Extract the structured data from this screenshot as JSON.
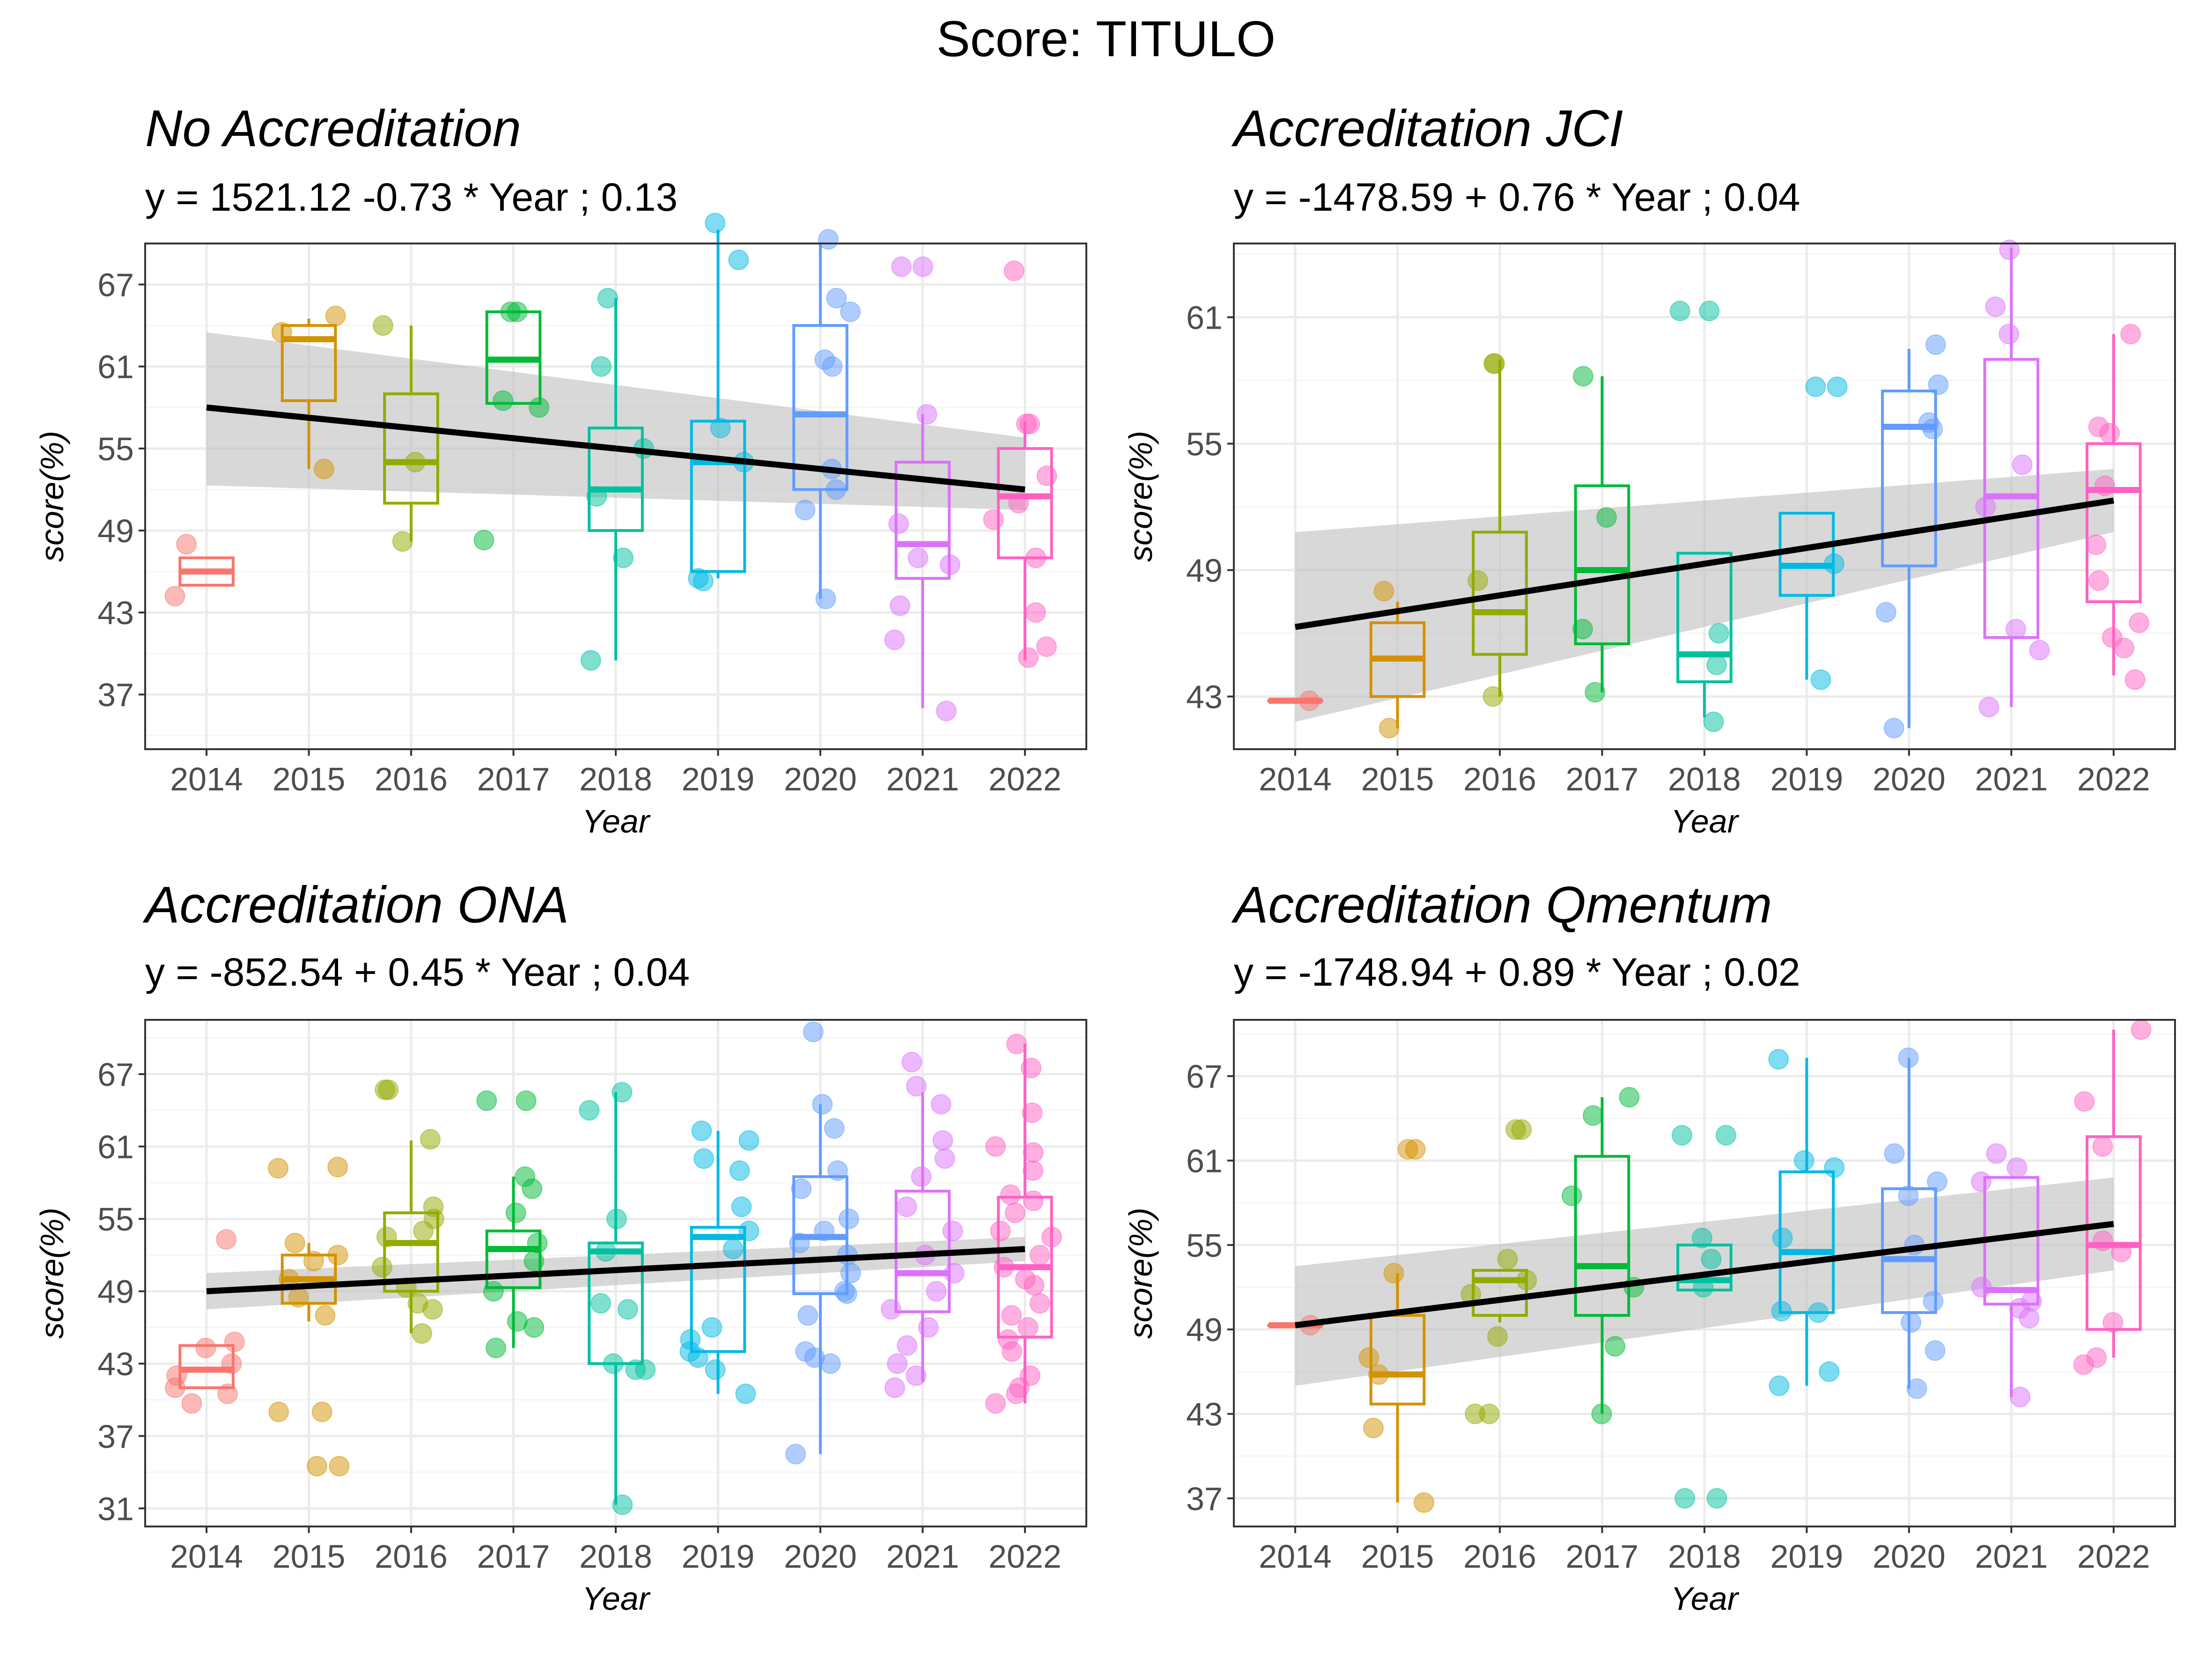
{
  "title": "Score: TITULO",
  "colors": {
    "2014": "#F8766D",
    "2015": "#D39200",
    "2016": "#93AA00",
    "2017": "#00BA38",
    "2018": "#00C19F",
    "2019": "#00B9E3",
    "2020": "#619CFF",
    "2021": "#DB72FB",
    "2022": "#FF61C3",
    "trend": "#000000",
    "ribbon": "#BEBEBE",
    "grid_major": "#EBEBEB",
    "grid_minor": "#F5F5F5",
    "frame": "#333333"
  },
  "chart_data": [
    {
      "type": "box",
      "title": "No Accreditation",
      "subtitle": "y = 1521.12 -0.73 * Year ; 0.13",
      "xlabel": "Year",
      "ylabel": "score(%)",
      "categories": [
        "2014",
        "2015",
        "2016",
        "2017",
        "2018",
        "2019",
        "2020",
        "2021",
        "2022"
      ],
      "ylim": [
        33,
        70
      ],
      "yticks": [
        37,
        43,
        49,
        55,
        61,
        67
      ],
      "boxes": [
        {
          "year": "2014",
          "min": 45,
          "q1": 45,
          "median": 46,
          "q3": 47,
          "max": 47
        },
        {
          "year": "2015",
          "min": 53.5,
          "q1": 58.5,
          "median": 63,
          "q3": 64,
          "max": 64.5
        },
        {
          "year": "2016",
          "min": 48.2,
          "q1": 51,
          "median": 54,
          "q3": 59,
          "max": 64
        },
        {
          "year": "2017",
          "min": 58.2,
          "q1": 58.3,
          "median": 61.5,
          "q3": 65,
          "max": 65
        },
        {
          "year": "2018",
          "min": 39.5,
          "q1": 49,
          "median": 52,
          "q3": 56.5,
          "max": 66
        },
        {
          "year": "2019",
          "min": 45.5,
          "q1": 46,
          "median": 54,
          "q3": 57,
          "max": 71
        },
        {
          "year": "2020",
          "min": 44,
          "q1": 52,
          "median": 57.5,
          "q3": 64,
          "max": 70
        },
        {
          "year": "2021",
          "min": 36,
          "q1": 45.5,
          "median": 48,
          "q3": 54,
          "max": 57.5
        },
        {
          "year": "2022",
          "min": 39.5,
          "q1": 47,
          "median": 51.5,
          "q3": 55,
          "max": 57
        }
      ],
      "points": [
        {
          "year": "2014",
          "values": [
            44.2,
            48
          ]
        },
        {
          "year": "2015",
          "values": [
            64.7,
            53.5,
            63.5
          ]
        },
        {
          "year": "2016",
          "values": [
            64,
            54,
            48.2
          ]
        },
        {
          "year": "2017",
          "values": [
            65,
            65,
            58.5,
            58,
            48.3
          ]
        },
        {
          "year": "2018",
          "values": [
            66,
            61,
            55,
            47,
            39.5,
            51.5
          ]
        },
        {
          "year": "2019",
          "values": [
            71.5,
            68.8,
            56.5,
            54,
            45.3,
            45.5
          ]
        },
        {
          "year": "2020",
          "values": [
            70.3,
            66,
            61.5,
            61,
            65,
            53.5,
            50.5,
            52,
            44
          ]
        },
        {
          "year": "2021",
          "values": [
            68.3,
            68.3,
            57.5,
            49.5,
            47,
            46.5,
            43.5,
            41,
            35.8
          ]
        },
        {
          "year": "2022",
          "values": [
            68,
            56.8,
            56.8,
            53,
            49.8,
            47,
            43,
            40.5,
            39.7,
            51
          ]
        }
      ],
      "trend": {
        "y2014": 58,
        "y2022": 52,
        "band_lo": [
          52.3,
          50.5
        ],
        "band_hi": [
          63.5,
          55.8
        ]
      }
    },
    {
      "type": "box",
      "title": "Accreditation JCI",
      "subtitle": "y = -1478.59 + 0.76 * Year ; 0.04",
      "xlabel": "Year",
      "ylabel": "score(%)",
      "categories": [
        "2014",
        "2015",
        "2016",
        "2017",
        "2018",
        "2019",
        "2020",
        "2021",
        "2022"
      ],
      "ylim": [
        40.5,
        64.5
      ],
      "yticks": [
        43,
        49,
        55,
        61
      ],
      "boxes": [
        {
          "year": "2014",
          "min": 42.8,
          "q1": 42.8,
          "median": 42.8,
          "q3": 42.8,
          "max": 42.8
        },
        {
          "year": "2015",
          "min": 41.5,
          "q1": 43,
          "median": 44.8,
          "q3": 46.5,
          "max": 47.5
        },
        {
          "year": "2016",
          "min": 43,
          "q1": 45,
          "median": 47,
          "q3": 50.8,
          "max": 59
        },
        {
          "year": "2017",
          "min": 43.2,
          "q1": 45.5,
          "median": 49,
          "q3": 53,
          "max": 58.2
        },
        {
          "year": "2018",
          "min": 42,
          "q1": 43.7,
          "median": 45,
          "q3": 49.8,
          "max": 49.8
        },
        {
          "year": "2019",
          "min": 43.8,
          "q1": 47.8,
          "median": 49.2,
          "q3": 51.7,
          "max": 51.7
        },
        {
          "year": "2020",
          "min": 41.5,
          "q1": 49.2,
          "median": 55.8,
          "q3": 57.5,
          "max": 59.5
        },
        {
          "year": "2021",
          "min": 42.5,
          "q1": 45.8,
          "median": 52.5,
          "q3": 59,
          "max": 64.3
        },
        {
          "year": "2022",
          "min": 44,
          "q1": 47.5,
          "median": 52.8,
          "q3": 55,
          "max": 60.2
        }
      ],
      "points": [
        {
          "year": "2014",
          "values": [
            42.8
          ]
        },
        {
          "year": "2015",
          "values": [
            48,
            41.5
          ]
        },
        {
          "year": "2016",
          "values": [
            58.8,
            58.8,
            43,
            48.5
          ]
        },
        {
          "year": "2017",
          "values": [
            58.2,
            51.5,
            46.2,
            43.2
          ]
        },
        {
          "year": "2018",
          "values": [
            61.3,
            61.3,
            46,
            44.5,
            41.8
          ]
        },
        {
          "year": "2019",
          "values": [
            57.7,
            57.7,
            43.8,
            49.3
          ]
        },
        {
          "year": "2020",
          "values": [
            59.7,
            57.8,
            56,
            47,
            41.5,
            55.7
          ]
        },
        {
          "year": "2021",
          "values": [
            64.2,
            61.5,
            60.2,
            54,
            46.2,
            45.2,
            42.5,
            52
          ]
        },
        {
          "year": "2022",
          "values": [
            60.2,
            55.8,
            55.5,
            53,
            50.2,
            48.5,
            46.5,
            45.8,
            45.3,
            43.8
          ]
        }
      ],
      "trend": {
        "y2014": 46.3,
        "y2022": 52.3,
        "band_lo": [
          41.8,
          50.8
        ],
        "band_hi": [
          50.8,
          53.8
        ]
      }
    },
    {
      "type": "box",
      "title": "Accreditation ONA",
      "subtitle": "y = -852.54 + 0.45 * Year ; 0.04",
      "xlabel": "Year",
      "ylabel": "score(%)",
      "categories": [
        "2014",
        "2015",
        "2016",
        "2017",
        "2018",
        "2019",
        "2020",
        "2021",
        "2022"
      ],
      "ylim": [
        29.5,
        71.5
      ],
      "yticks": [
        31,
        37,
        43,
        49,
        55,
        61,
        67
      ],
      "boxes": [
        {
          "year": "2014",
          "min": 41,
          "q1": 41,
          "median": 42.5,
          "q3": 44.5,
          "max": 44.5
        },
        {
          "year": "2015",
          "min": 46.5,
          "q1": 48,
          "median": 50,
          "q3": 52,
          "max": 53
        },
        {
          "year": "2016",
          "min": 45.5,
          "q1": 49,
          "median": 53,
          "q3": 55.5,
          "max": 61.5
        },
        {
          "year": "2017",
          "min": 44.3,
          "q1": 49.3,
          "median": 52.5,
          "q3": 54,
          "max": 58.5
        },
        {
          "year": "2018",
          "min": 31.3,
          "q1": 43,
          "median": 52.3,
          "q3": 53,
          "max": 65.5
        },
        {
          "year": "2019",
          "min": 40.5,
          "q1": 44,
          "median": 53.5,
          "q3": 54.3,
          "max": 62.3
        },
        {
          "year": "2020",
          "min": 35.5,
          "q1": 48.8,
          "median": 53.5,
          "q3": 58.5,
          "max": 64.5
        },
        {
          "year": "2021",
          "min": 41.5,
          "q1": 47.3,
          "median": 50.5,
          "q3": 57.3,
          "max": 65.5
        },
        {
          "year": "2022",
          "min": 39.7,
          "q1": 45.2,
          "median": 51,
          "q3": 56.8,
          "max": 69.5
        }
      ],
      "points": [
        {
          "year": "2014",
          "values": [
            53.3,
            44.8,
            44.3,
            43,
            42,
            41,
            40.5,
            39.7
          ]
        },
        {
          "year": "2015",
          "values": [
            59.2,
            59.3,
            53,
            52,
            51.5,
            50,
            48.5,
            47,
            39,
            39,
            34.5,
            34.5
          ]
        },
        {
          "year": "2016",
          "values": [
            65.7,
            65.7,
            61.6,
            56,
            55,
            54,
            53.5,
            51,
            49.3,
            48,
            47.5,
            45.5
          ]
        },
        {
          "year": "2017",
          "values": [
            64.8,
            64.8,
            58.5,
            57.5,
            55.5,
            53,
            51.5,
            49,
            46.5,
            46,
            44.3
          ]
        },
        {
          "year": "2018",
          "values": [
            65.5,
            64,
            55,
            52.3,
            48,
            47.5,
            43,
            42.5,
            42.5,
            31.3
          ]
        },
        {
          "year": "2019",
          "values": [
            62.3,
            61.5,
            60,
            59,
            56,
            54,
            52.5,
            46,
            45,
            44,
            43.5,
            42.5,
            40.5
          ]
        },
        {
          "year": "2020",
          "values": [
            70.5,
            64.5,
            62.5,
            59,
            57.5,
            55,
            54,
            53,
            52,
            50.5,
            49,
            48.8,
            47,
            44,
            43.5,
            43,
            35.5
          ]
        },
        {
          "year": "2021",
          "values": [
            68,
            66,
            64.5,
            61.5,
            60,
            58.5,
            56,
            54,
            52,
            50.5,
            49,
            47.5,
            46,
            44.5,
            43,
            42,
            41
          ]
        },
        {
          "year": "2022",
          "values": [
            69.5,
            67.5,
            63.8,
            61,
            60.5,
            59,
            57,
            56.5,
            55.5,
            54,
            53.5,
            52,
            51,
            50,
            49.5,
            48,
            47,
            46,
            45,
            44,
            42,
            41,
            40.5,
            39.7
          ]
        }
      ],
      "trend": {
        "y2014": 49,
        "y2022": 52.5,
        "band_lo": [
          47.5,
          51.5
        ],
        "band_hi": [
          50.5,
          53.5
        ]
      }
    },
    {
      "type": "box",
      "title": "Accreditation Qmentum",
      "subtitle": "y = -1748.94 + 0.89 * Year ; 0.02",
      "xlabel": "Year",
      "ylabel": "score(%)",
      "categories": [
        "2014",
        "2015",
        "2016",
        "2017",
        "2018",
        "2019",
        "2020",
        "2021",
        "2022"
      ],
      "ylim": [
        35,
        71
      ],
      "yticks": [
        37,
        43,
        49,
        55,
        61,
        67
      ],
      "boxes": [
        {
          "year": "2014",
          "min": 49.3,
          "q1": 49.3,
          "median": 49.3,
          "q3": 49.3,
          "max": 49.3
        },
        {
          "year": "2015",
          "min": 36.7,
          "q1": 43.7,
          "median": 45.8,
          "q3": 50,
          "max": 53
        },
        {
          "year": "2016",
          "min": 49.5,
          "q1": 50,
          "median": 52.5,
          "q3": 53.2,
          "max": 53.2
        },
        {
          "year": "2017",
          "min": 43,
          "q1": 50,
          "median": 53.5,
          "q3": 61.3,
          "max": 65.5
        },
        {
          "year": "2018",
          "min": 51.8,
          "q1": 51.8,
          "median": 52.5,
          "q3": 55,
          "max": 55
        },
        {
          "year": "2019",
          "min": 45,
          "q1": 50.2,
          "median": 54.5,
          "q3": 60.2,
          "max": 68.3
        },
        {
          "year": "2020",
          "min": 44.8,
          "q1": 50.2,
          "median": 54,
          "q3": 59,
          "max": 68.3
        },
        {
          "year": "2021",
          "min": 44.2,
          "q1": 50.8,
          "median": 51.8,
          "q3": 59.8,
          "max": 59.8
        },
        {
          "year": "2022",
          "min": 47,
          "q1": 49,
          "median": 55,
          "q3": 62.7,
          "max": 70.3
        }
      ],
      "points": [
        {
          "year": "2014",
          "values": [
            49.3
          ]
        },
        {
          "year": "2015",
          "values": [
            61.8,
            61.8,
            53,
            47,
            45.8,
            42,
            36.7
          ]
        },
        {
          "year": "2016",
          "values": [
            63.2,
            63.2,
            54,
            52.5,
            51.5,
            48.5,
            43,
            43
          ]
        },
        {
          "year": "2017",
          "values": [
            65.5,
            64.2,
            58.5,
            52,
            47.8,
            43
          ]
        },
        {
          "year": "2018",
          "values": [
            62.8,
            62.8,
            55.5,
            54,
            52,
            37,
            37
          ]
        },
        {
          "year": "2019",
          "values": [
            68.2,
            61,
            60.5,
            55.5,
            50.3,
            50.2,
            46,
            45
          ]
        },
        {
          "year": "2020",
          "values": [
            68.3,
            61.5,
            59.5,
            58.5,
            55,
            51,
            49.5,
            47.5,
            44.8
          ]
        },
        {
          "year": "2021",
          "values": [
            61.5,
            60.5,
            59.5,
            52,
            51,
            50.5,
            49.8,
            44.2
          ]
        },
        {
          "year": "2022",
          "values": [
            70.3,
            65.2,
            62,
            55.3,
            54.5,
            49.5,
            47,
            46.5
          ]
        }
      ],
      "trend": {
        "y2014": 49.3,
        "y2022": 56.5,
        "band_lo": [
          45,
          53.2
        ],
        "band_hi": [
          53.5,
          59.8
        ]
      }
    }
  ]
}
